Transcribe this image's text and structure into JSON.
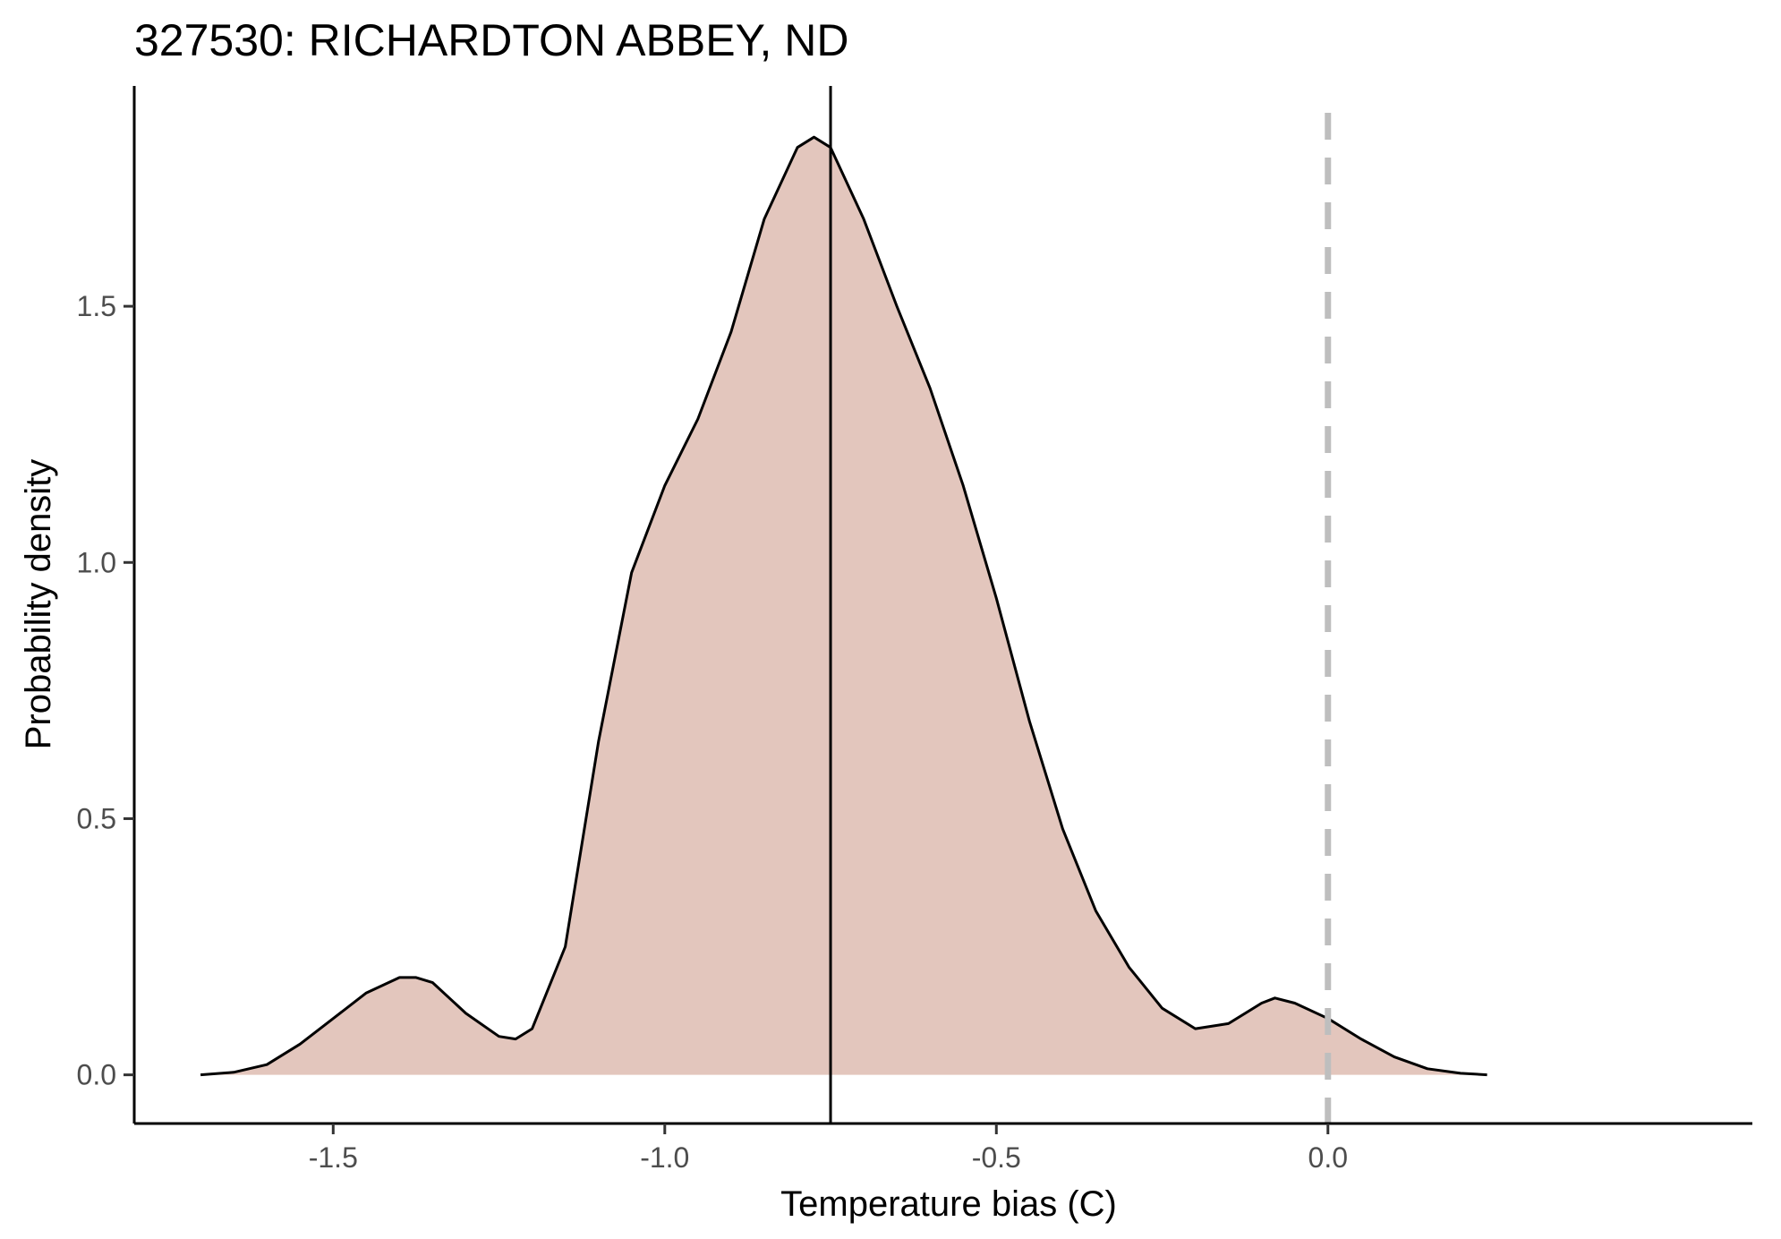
{
  "chart_data": {
    "type": "area",
    "title": "327530: RICHARDTON ABBEY, ND",
    "xlabel": "Temperature bias (C)",
    "ylabel": "Probability density",
    "xlim": [
      -1.8,
      0.64
    ],
    "ylim": [
      -0.095,
      1.93
    ],
    "x_ticks": [
      -1.5,
      -1.0,
      -0.5,
      0.0
    ],
    "x_tick_labels": [
      "-1.5",
      "-1.0",
      "-0.5",
      "0.0"
    ],
    "y_ticks": [
      0.0,
      0.5,
      1.0,
      1.5
    ],
    "y_tick_labels": [
      "0.0",
      "0.5",
      "1.0",
      "1.5"
    ],
    "grid": false,
    "legend": "none",
    "fill_color": "#e3c6bd",
    "line_color": "#000000",
    "reference_lines": [
      {
        "x": -0.75,
        "style": "solid",
        "color": "#000000"
      },
      {
        "x": 0.0,
        "style": "dashed",
        "color": "#bebebe"
      }
    ],
    "series": [
      {
        "x": [
          -1.7,
          -1.65,
          -1.6,
          -1.55,
          -1.5,
          -1.45,
          -1.4,
          -1.375,
          -1.35,
          -1.3,
          -1.25,
          -1.225,
          -1.2,
          -1.15,
          -1.1,
          -1.05,
          -1.0,
          -0.95,
          -0.9,
          -0.85,
          -0.8,
          -0.775,
          -0.75,
          -0.7,
          -0.65,
          -0.6,
          -0.55,
          -0.5,
          -0.45,
          -0.4,
          -0.35,
          -0.3,
          -0.25,
          -0.2,
          -0.15,
          -0.1,
          -0.08,
          -0.05,
          0.0,
          0.05,
          0.1,
          0.15,
          0.2,
          0.24
        ],
        "y": [
          0.0,
          0.005,
          0.02,
          0.06,
          0.11,
          0.16,
          0.19,
          0.19,
          0.18,
          0.12,
          0.075,
          0.07,
          0.09,
          0.25,
          0.65,
          0.98,
          1.15,
          1.28,
          1.45,
          1.67,
          1.81,
          1.83,
          1.81,
          1.67,
          1.5,
          1.34,
          1.15,
          0.93,
          0.69,
          0.48,
          0.32,
          0.21,
          0.13,
          0.09,
          0.1,
          0.14,
          0.15,
          0.14,
          0.11,
          0.07,
          0.035,
          0.012,
          0.003,
          0.0
        ]
      }
    ]
  }
}
